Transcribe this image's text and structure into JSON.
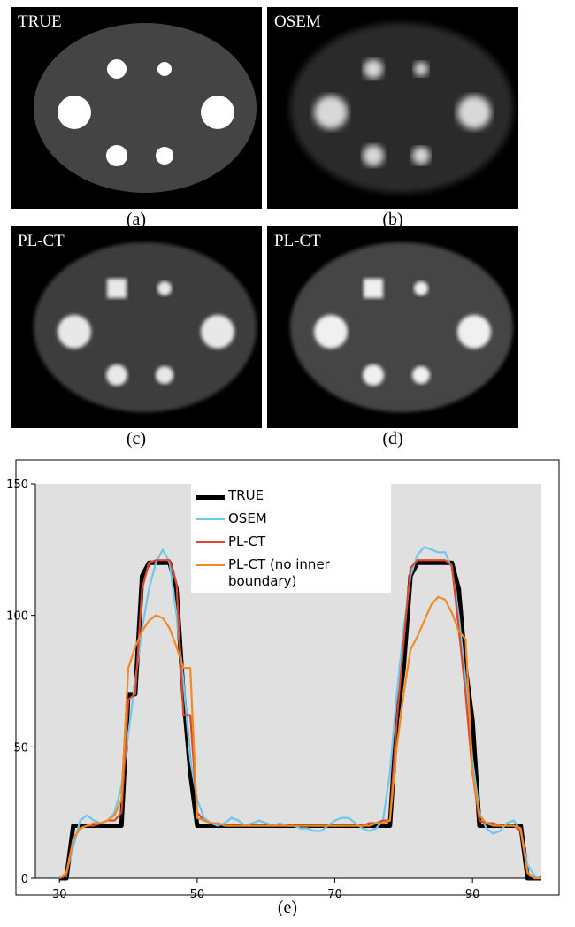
{
  "panels": [
    {
      "label": "TRUE",
      "caption": "(a)"
    },
    {
      "label": "OSEM",
      "caption": "(b)"
    },
    {
      "label": "PL-CT",
      "caption": "(c)"
    },
    {
      "label": "PL-CT",
      "caption": "(d)"
    }
  ],
  "figure_caption": "(e)",
  "chart_data": {
    "type": "line",
    "x": [
      30,
      31,
      32,
      33,
      34,
      35,
      36,
      37,
      38,
      39,
      40,
      41,
      42,
      43,
      44,
      45,
      46,
      47,
      48,
      49,
      50,
      51,
      52,
      53,
      54,
      55,
      56,
      57,
      58,
      59,
      60,
      61,
      62,
      63,
      64,
      65,
      66,
      67,
      68,
      69,
      70,
      71,
      72,
      73,
      74,
      75,
      76,
      77,
      78,
      79,
      80,
      81,
      82,
      83,
      84,
      85,
      86,
      87,
      88,
      89,
      90,
      91,
      92,
      93,
      94,
      95,
      96,
      97,
      98,
      99,
      100
    ],
    "series": [
      {
        "name": "TRUE",
        "color": "#000000",
        "width": 5,
        "values": [
          0,
          0,
          20,
          20,
          20,
          20,
          20,
          20,
          20,
          20,
          70,
          70,
          115,
          120,
          120,
          120,
          120,
          110,
          70,
          40,
          20,
          20,
          20,
          20,
          20,
          20,
          20,
          20,
          20,
          20,
          20,
          20,
          20,
          20,
          20,
          20,
          20,
          20,
          20,
          20,
          20,
          20,
          20,
          20,
          20,
          20,
          20,
          20,
          20,
          60,
          80,
          115,
          120,
          120,
          120,
          120,
          120,
          120,
          110,
          80,
          60,
          20,
          20,
          20,
          20,
          20,
          20,
          20,
          0,
          0,
          0
        ]
      },
      {
        "name": "OSEM",
        "color": "#6ec6ea",
        "width": 2.2,
        "values": [
          0,
          2,
          12,
          22,
          24,
          22,
          21,
          22,
          25,
          35,
          55,
          75,
          95,
          110,
          120,
          125,
          120,
          100,
          75,
          45,
          30,
          23,
          21,
          20,
          21,
          23,
          22,
          20,
          21,
          22,
          21,
          20,
          21,
          20,
          20,
          19,
          19,
          18,
          18,
          20,
          22,
          23,
          23,
          21,
          19,
          18,
          19,
          22,
          40,
          70,
          95,
          115,
          123,
          126,
          125,
          124,
          124,
          118,
          100,
          75,
          45,
          25,
          19,
          17,
          18,
          21,
          22,
          18,
          5,
          1,
          0
        ]
      },
      {
        "name": "PL-CT",
        "color": "#d9482b",
        "width": 2.2,
        "values": [
          0,
          1,
          15,
          19,
          20,
          20,
          21,
          22,
          22,
          25,
          68,
          70,
          110,
          120,
          121,
          121,
          121,
          112,
          62,
          62,
          25,
          22,
          21,
          21,
          20,
          20,
          20,
          20,
          20,
          20,
          20,
          20,
          20,
          20,
          20,
          20,
          20,
          20,
          20,
          20,
          20,
          20,
          20,
          20,
          20,
          21,
          21,
          22,
          22,
          60,
          90,
          118,
          121,
          121,
          121,
          121,
          121,
          119,
          95,
          70,
          40,
          22,
          21,
          21,
          20,
          20,
          20,
          18,
          2,
          0,
          0
        ]
      },
      {
        "name": "PL-CT (no inner boundary)",
        "color": "#ef8a24",
        "width": 2.2,
        "values": [
          0,
          2,
          15,
          19,
          20,
          21,
          21,
          22,
          24,
          30,
          80,
          88,
          94,
          98,
          100,
          99,
          95,
          88,
          80,
          80,
          23,
          22,
          21,
          21,
          20,
          20,
          20,
          20,
          20,
          20,
          20,
          20,
          20,
          20,
          20,
          20,
          20,
          20,
          20,
          20,
          20,
          20,
          20,
          20,
          20,
          20,
          21,
          21,
          22,
          50,
          70,
          87,
          92,
          98,
          104,
          107,
          106,
          101,
          94,
          91,
          40,
          24,
          21,
          20,
          20,
          20,
          20,
          19,
          2,
          0,
          0
        ]
      }
    ],
    "xlim": [
      26.5,
      100
    ],
    "xticks": [
      30,
      50,
      70,
      90
    ],
    "ylim": [
      0,
      150
    ],
    "yticks": [
      0,
      50,
      100,
      150
    ]
  }
}
